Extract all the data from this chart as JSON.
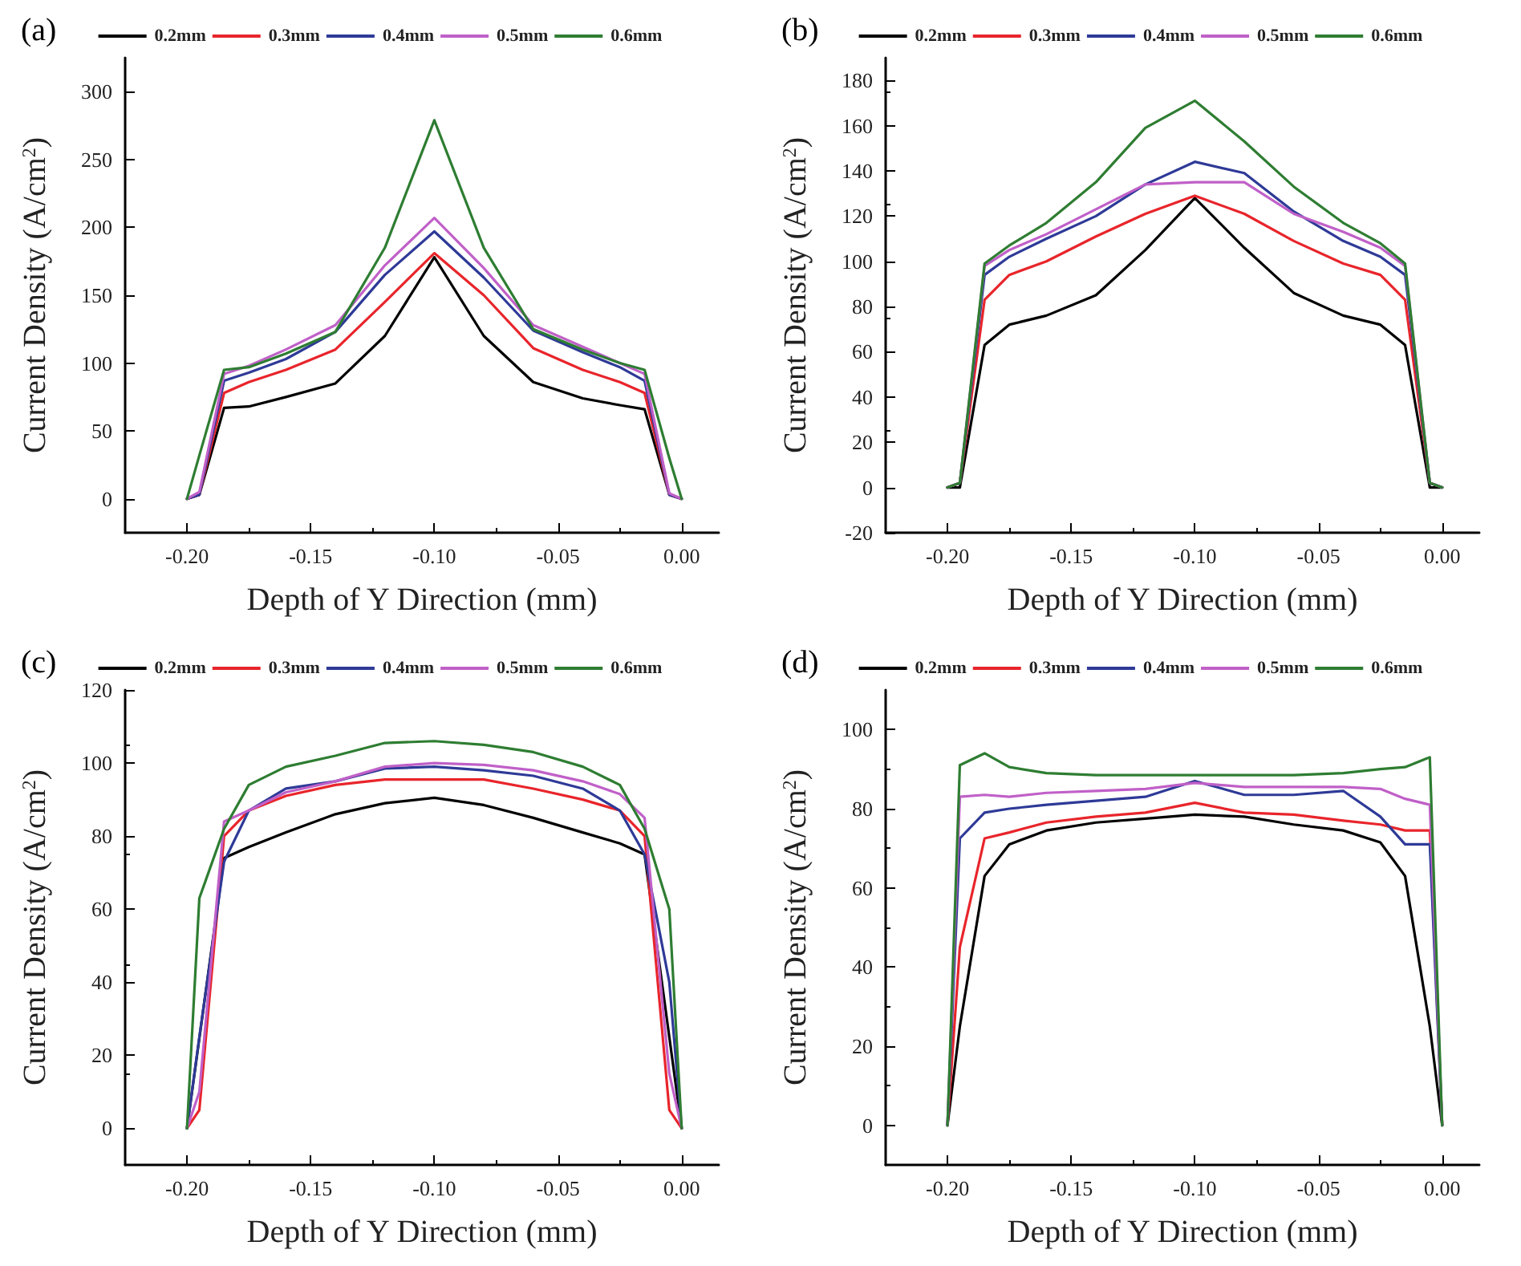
{
  "chart_data": [
    {
      "type": "line",
      "title": "(a)",
      "xlabel": "Depth of Y Direction (mm)",
      "ylabel": "Current Density (A/cm$^{2}$)",
      "legend": "top",
      "grid": false,
      "marker": "none",
      "line_style": "solid",
      "x": [
        -0.2,
        -0.195,
        -0.185,
        -0.175,
        -0.16,
        -0.14,
        -0.12,
        -0.1,
        -0.08,
        -0.06,
        -0.04,
        -0.025,
        -0.015,
        -0.005,
        0
      ],
      "xlim": [
        -0.225,
        0.015
      ],
      "xticks": [
        {
          "value": -0.2,
          "label": "-0.20"
        },
        {
          "value": -0.15,
          "label": "-0.15"
        },
        {
          "value": -0.1,
          "label": "-0.10"
        },
        {
          "value": -0.05,
          "label": "-0.05"
        },
        {
          "value": 0,
          "label": "0.00"
        }
      ],
      "ylim": [
        -25,
        325
      ],
      "yticks": [
        0,
        50,
        100,
        150,
        200,
        250,
        300
      ],
      "series": [
        {
          "name": "0.2mm",
          "color": "#000000",
          "values": [
            0,
            3,
            67,
            68,
            75,
            85,
            120,
            178,
            120,
            86,
            74,
            69,
            66,
            3,
            0
          ]
        },
        {
          "name": "0.3mm",
          "color": "#e8252b",
          "values": [
            0,
            3,
            78,
            86,
            95,
            110,
            145,
            181,
            150,
            111,
            95,
            86,
            78,
            3,
            0
          ]
        },
        {
          "name": "0.4mm",
          "color": "#2e3a97",
          "values": [
            0,
            3,
            87,
            93,
            103,
            123,
            165,
            197,
            163,
            124,
            108,
            97,
            87,
            3,
            0
          ]
        },
        {
          "name": "0.5mm",
          "color": "#c060c8",
          "values": [
            0,
            5,
            92,
            98,
            110,
            128,
            172,
            207,
            170,
            128,
            112,
            100,
            92,
            4,
            0
          ]
        },
        {
          "name": "0.6mm",
          "color": "#2e7d32",
          "values": [
            0,
            32,
            95,
            97,
            107,
            123,
            185,
            279,
            185,
            125,
            110,
            100,
            95,
            30,
            0
          ]
        }
      ]
    },
    {
      "type": "line",
      "title": "(b)",
      "xlabel": "Depth of Y Direction (mm)",
      "ylabel": "Current Density (A/cm$^{2}$)",
      "legend": "top",
      "grid": false,
      "marker": "none",
      "line_style": "solid",
      "x": [
        -0.2,
        -0.195,
        -0.185,
        -0.175,
        -0.16,
        -0.14,
        -0.12,
        -0.1,
        -0.08,
        -0.06,
        -0.04,
        -0.025,
        -0.015,
        -0.005,
        0
      ],
      "xlim": [
        -0.225,
        0.015
      ],
      "xticks": [
        {
          "value": -0.2,
          "label": "-0.20"
        },
        {
          "value": -0.15,
          "label": "-0.15"
        },
        {
          "value": -0.1,
          "label": "-0.10"
        },
        {
          "value": -0.05,
          "label": "-0.05"
        },
        {
          "value": 0,
          "label": "0.00"
        }
      ],
      "ylim": [
        -20,
        190
      ],
      "yticks": [
        -20,
        0,
        20,
        40,
        60,
        80,
        100,
        120,
        140,
        160,
        180
      ],
      "series": [
        {
          "name": "0.2mm",
          "color": "#000000",
          "values": [
            0,
            0,
            63,
            72,
            76,
            85,
            105,
            128,
            106,
            86,
            76,
            72,
            63,
            0,
            0
          ]
        },
        {
          "name": "0.3mm",
          "color": "#e8252b",
          "values": [
            0,
            2,
            83,
            94,
            100,
            111,
            121,
            129,
            121,
            109,
            99,
            94,
            83,
            2,
            0
          ]
        },
        {
          "name": "0.4mm",
          "color": "#2e3a97",
          "values": [
            0,
            2,
            94,
            102,
            110,
            120,
            134,
            144,
            139,
            122,
            109,
            102,
            94,
            2,
            0
          ]
        },
        {
          "name": "0.5mm",
          "color": "#c060c8",
          "values": [
            0,
            2,
            98,
            105,
            112,
            123,
            134,
            135,
            135,
            121,
            113,
            106,
            98,
            2,
            0
          ]
        },
        {
          "name": "0.6mm",
          "color": "#2e7d32",
          "values": [
            0,
            2,
            99,
            107,
            117,
            135,
            159,
            171,
            153,
            133,
            117,
            108,
            99,
            2,
            0
          ]
        }
      ]
    },
    {
      "type": "line",
      "title": "(c)",
      "xlabel": "Depth of Y Direction (mm)",
      "ylabel": "Current Density (A/cm$^{2}$)",
      "legend": "top",
      "grid": false,
      "marker": "none",
      "line_style": "solid",
      "x": [
        -0.2,
        -0.195,
        -0.185,
        -0.175,
        -0.16,
        -0.14,
        -0.12,
        -0.1,
        -0.08,
        -0.06,
        -0.04,
        -0.025,
        -0.015,
        -0.005,
        0
      ],
      "xlim": [
        -0.225,
        0.015
      ],
      "xticks": [
        {
          "value": -0.2,
          "label": "-0.20"
        },
        {
          "value": -0.15,
          "label": "-0.15"
        },
        {
          "value": -0.1,
          "label": "-0.10"
        },
        {
          "value": -0.05,
          "label": "-0.05"
        },
        {
          "value": 0,
          "label": "0.00"
        }
      ],
      "ylim": [
        -10,
        120
      ],
      "yticks": [
        0,
        20,
        40,
        60,
        80,
        100,
        120
      ],
      "series": [
        {
          "name": "0.2mm",
          "color": "#000000",
          "x": [
            -0.2,
            -0.185,
            -0.175,
            -0.16,
            -0.14,
            -0.12,
            -0.1,
            -0.08,
            -0.06,
            -0.04,
            -0.025,
            -0.015,
            0
          ],
          "values": [
            0,
            74,
            77,
            81,
            86,
            89,
            90.5,
            88.5,
            85,
            81,
            78,
            75,
            0
          ]
        },
        {
          "name": "0.3mm",
          "color": "#e8252b",
          "values": [
            0,
            5,
            80,
            87,
            91,
            94,
            95.5,
            95.5,
            95.5,
            93,
            90,
            87,
            80,
            5,
            0
          ]
        },
        {
          "name": "0.4mm",
          "color": "#2e3a97",
          "values": [
            0,
            25,
            73,
            87,
            93,
            95,
            98.5,
            99,
            98,
            96.5,
            93,
            87,
            75,
            40,
            0
          ]
        },
        {
          "name": "0.5mm",
          "color": "#c060c8",
          "values": [
            0,
            10,
            84,
            87,
            92,
            95,
            99,
            100,
            99.5,
            98,
            95,
            91.5,
            85,
            15,
            0
          ]
        },
        {
          "name": "0.6mm",
          "color": "#2e7d32",
          "values": [
            0,
            63,
            82,
            94,
            99,
            102,
            105.5,
            106,
            105,
            103,
            99,
            94,
            82,
            60,
            0
          ]
        }
      ]
    },
    {
      "type": "line",
      "title": "(d)",
      "xlabel": "Depth of Y Direction (mm)",
      "ylabel": "Current Density (A/cm$^{2}$)",
      "legend": "top",
      "grid": false,
      "marker": "none",
      "line_style": "solid",
      "x": [
        -0.2,
        -0.195,
        -0.185,
        -0.175,
        -0.16,
        -0.14,
        -0.12,
        -0.1,
        -0.08,
        -0.06,
        -0.04,
        -0.025,
        -0.015,
        -0.005,
        0
      ],
      "xlim": [
        -0.225,
        0.015
      ],
      "xticks": [
        {
          "value": -0.2,
          "label": "-0.20"
        },
        {
          "value": -0.15,
          "label": "-0.15"
        },
        {
          "value": -0.1,
          "label": "-0.10"
        },
        {
          "value": -0.05,
          "label": "-0.05"
        },
        {
          "value": 0,
          "label": "0.00"
        }
      ],
      "ylim": [
        -10,
        110
      ],
      "yticks": [
        0,
        20,
        40,
        60,
        80,
        100
      ],
      "series": [
        {
          "name": "0.2mm",
          "color": "#000000",
          "values": [
            0,
            25,
            63,
            71,
            74.5,
            76.5,
            77.5,
            78.5,
            78,
            76,
            74.5,
            71.5,
            63,
            25,
            0
          ]
        },
        {
          "name": "0.3mm",
          "color": "#e8252b",
          "values": [
            0,
            45,
            72.5,
            74,
            76.5,
            78,
            79,
            81.5,
            79,
            78.5,
            77,
            76,
            74.5,
            74.5,
            0
          ]
        },
        {
          "name": "0.4mm",
          "color": "#2e3a97",
          "values": [
            0,
            72.5,
            79,
            80,
            81,
            82,
            83,
            87,
            83.5,
            83.5,
            84.5,
            78,
            71,
            71,
            0
          ]
        },
        {
          "name": "0.5mm",
          "color": "#c060c8",
          "values": [
            0,
            83,
            83.5,
            83,
            84,
            84.5,
            85,
            86.5,
            85.5,
            85.5,
            85.5,
            85,
            82.5,
            81,
            0
          ]
        },
        {
          "name": "0.6mm",
          "color": "#2e7d32",
          "values": [
            0,
            91,
            94,
            90.5,
            89,
            88.5,
            88.5,
            88.5,
            88.5,
            88.5,
            89,
            90,
            90.5,
            93,
            0
          ]
        }
      ]
    }
  ]
}
